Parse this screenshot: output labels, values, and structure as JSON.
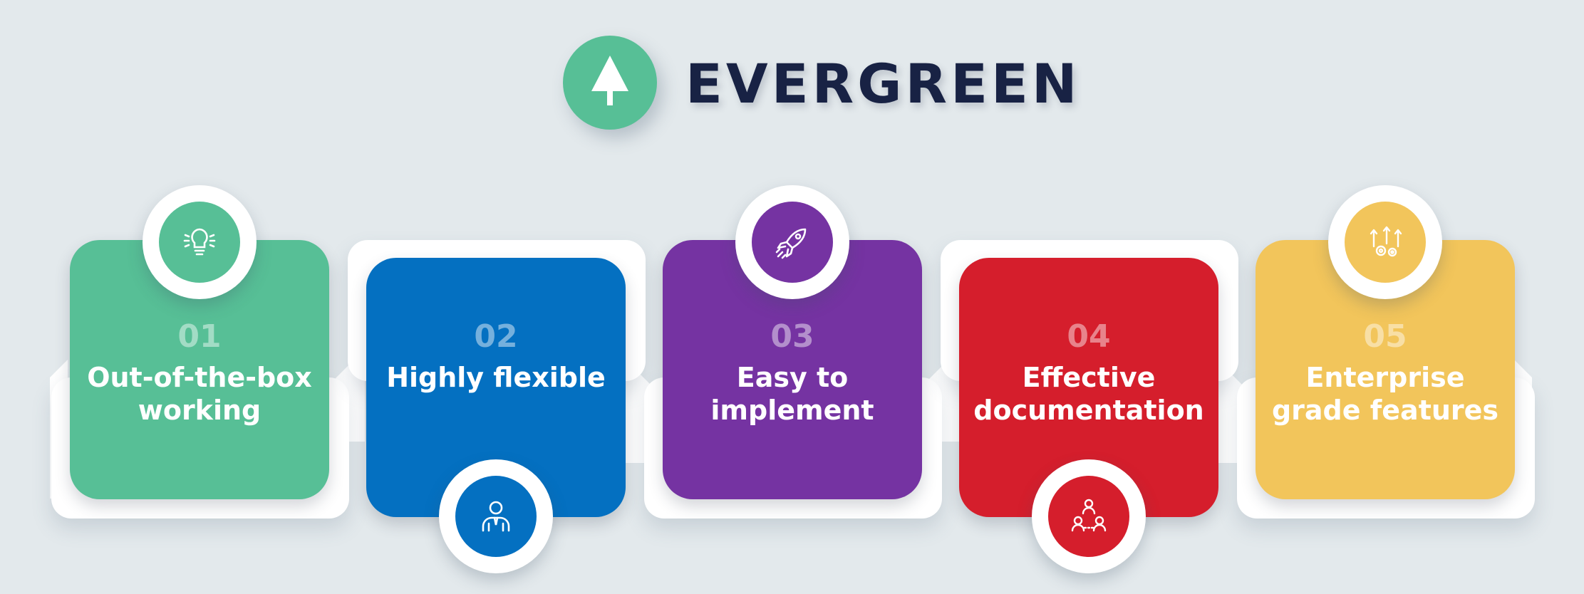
{
  "header": {
    "title": "EVERGREEN",
    "logo_icon": "tree-icon",
    "logo_color": "#57bf96"
  },
  "steps": [
    {
      "number": "01",
      "label_line1": "Out-of-the-box",
      "label_line2": "working",
      "color": "#57bf96",
      "icon": "lightbulb-icon"
    },
    {
      "number": "02",
      "label_line1": "Highly flexible",
      "label_line2": "",
      "color": "#0470c1",
      "icon": "person-icon"
    },
    {
      "number": "03",
      "label_line1": "Easy to",
      "label_line2": "implement",
      "color": "#7533a2",
      "icon": "rocket-icon"
    },
    {
      "number": "04",
      "label_line1": "Effective",
      "label_line2": "documentation",
      "color": "#d51e2c",
      "icon": "team-network-icon"
    },
    {
      "number": "05",
      "label_line1": "Enterprise",
      "label_line2": "grade features",
      "color": "#f2c55b",
      "icon": "gears-growth-icon"
    }
  ]
}
